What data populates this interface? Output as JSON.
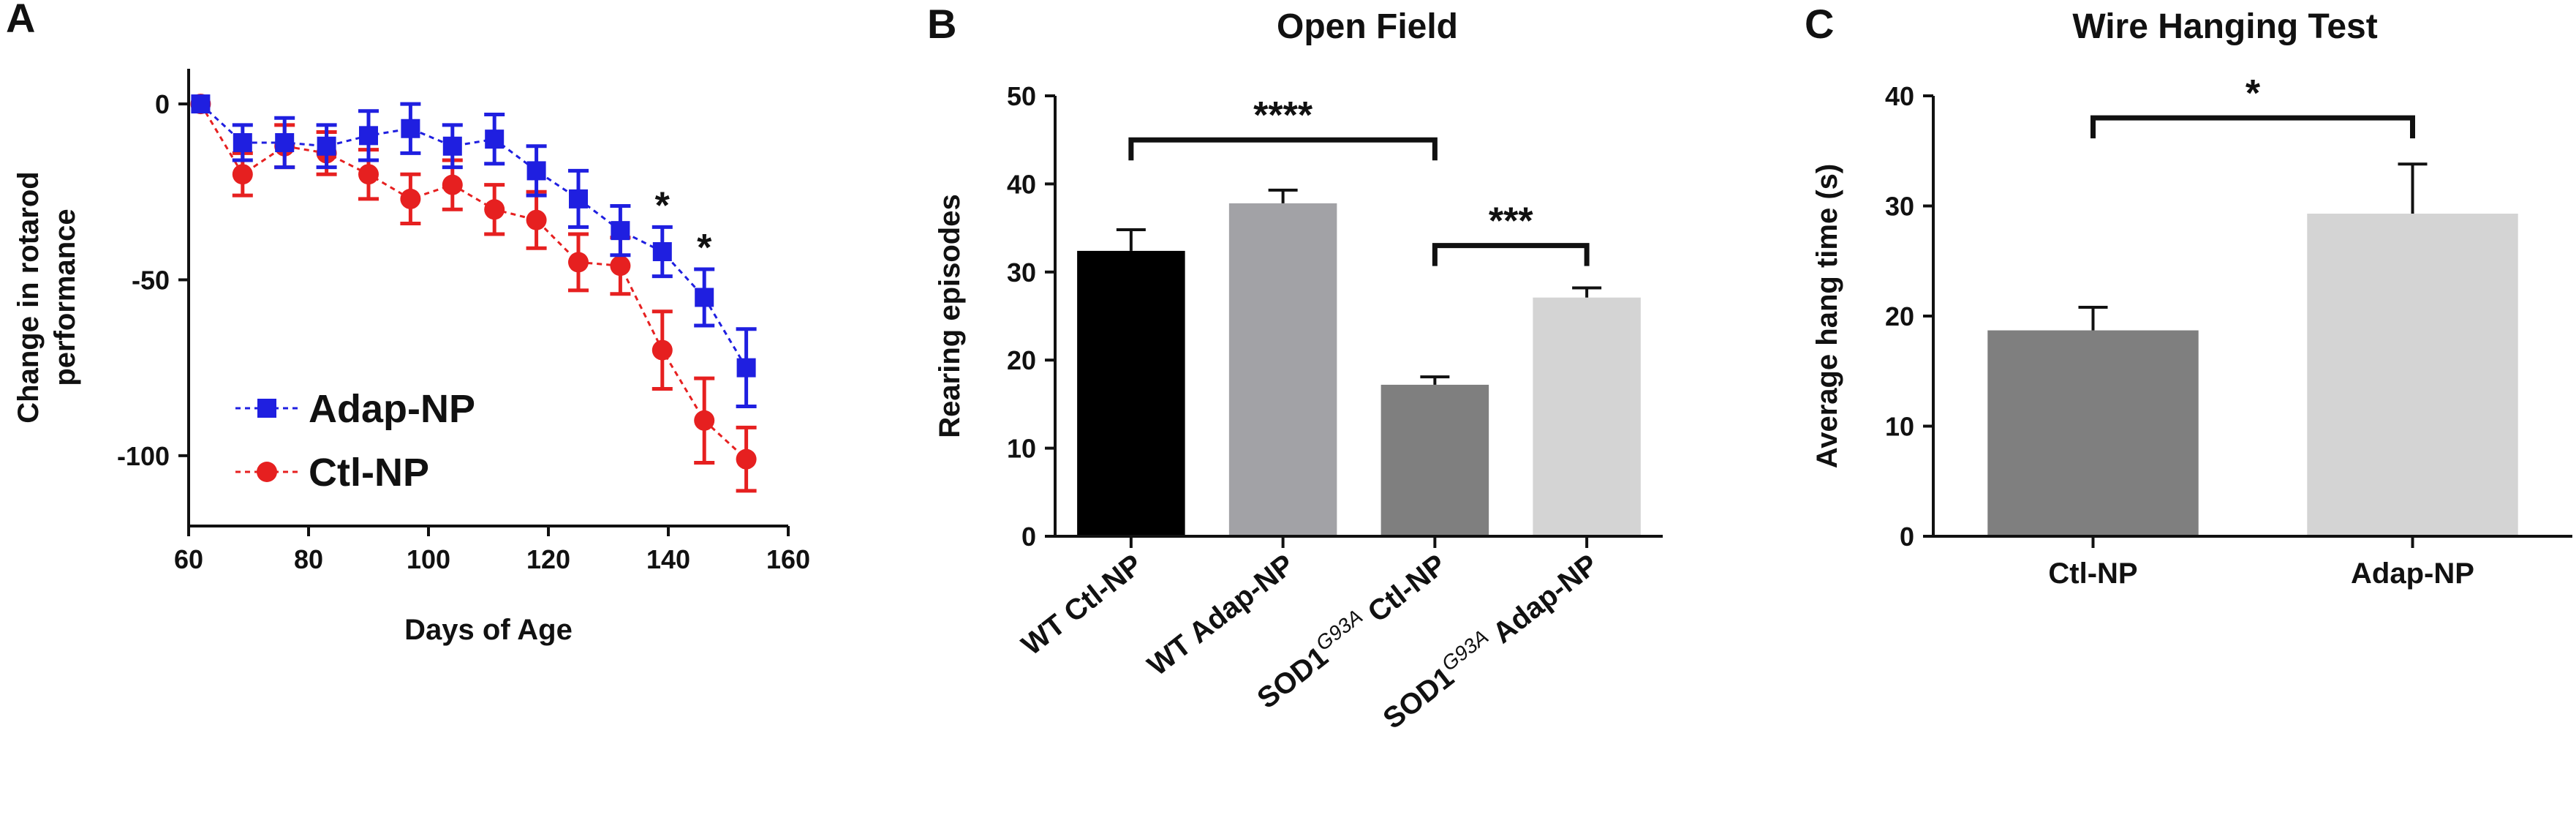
{
  "chart_data": [
    {
      "panel": "A",
      "type": "line",
      "title": "",
      "xlabel": "Days of Age",
      "ylabel_lines": [
        "Change in rotarod",
        "performance"
      ],
      "xlim": [
        60,
        160
      ],
      "ylim": [
        -120,
        10
      ],
      "xticks": [
        60,
        80,
        100,
        120,
        140,
        160
      ],
      "yticks": [
        0,
        -50,
        -100
      ],
      "legend": {
        "position": "bottom-left"
      },
      "series": [
        {
          "name": "Adap-NP",
          "color": "#1f1fe0",
          "marker": "square",
          "x": [
            62,
            69,
            76,
            83,
            90,
            97,
            104,
            111,
            118,
            125,
            132,
            139,
            146,
            153
          ],
          "y": [
            0,
            -11,
            -11,
            -12,
            -9,
            -7,
            -12,
            -10,
            -19,
            -27,
            -36,
            -42,
            -55,
            -75
          ],
          "err": [
            0,
            5,
            7,
            6,
            7,
            7,
            6,
            7,
            7,
            8,
            7,
            7,
            8,
            11
          ]
        },
        {
          "name": "Ctl-NP",
          "color": "#e62020",
          "marker": "circle",
          "x": [
            62,
            69,
            76,
            83,
            90,
            97,
            104,
            111,
            118,
            125,
            132,
            139,
            146,
            153
          ],
          "y": [
            0,
            -20,
            -12,
            -14,
            -20,
            -27,
            -23,
            -30,
            -33,
            -45,
            -46,
            -70,
            -90,
            -101
          ],
          "err": [
            0,
            6,
            6,
            6,
            7,
            7,
            7,
            7,
            8,
            8,
            8,
            11,
            12,
            9
          ]
        }
      ],
      "annotations": [
        {
          "text": "*",
          "x": 139
        },
        {
          "text": "*",
          "x": 146
        }
      ]
    },
    {
      "panel": "B",
      "type": "bar",
      "title": "Open Field",
      "ylabel": "Rearing episodes",
      "ylim": [
        0,
        50
      ],
      "yticks": [
        0,
        10,
        20,
        30,
        40,
        50
      ],
      "categories": [
        {
          "prefix": "WT Ctl-NP",
          "sup": "",
          "suffix": ""
        },
        {
          "prefix": "WT Adap-NP",
          "sup": "",
          "suffix": ""
        },
        {
          "prefix": "SOD1",
          "sup": "G93A",
          "suffix": " Ctl-NP"
        },
        {
          "prefix": "SOD1",
          "sup": "G93A",
          "suffix": " Adap-NP"
        }
      ],
      "values": [
        32.4,
        37.8,
        17.2,
        27.1
      ],
      "errors": [
        2.4,
        1.5,
        0.9,
        1.1
      ],
      "colors": [
        "#000000",
        "#a2a2a6",
        "#7f7f7f",
        "#d4d4d4"
      ],
      "brackets": [
        {
          "from": 0,
          "to": 2,
          "text": "****",
          "level": 45
        },
        {
          "from": 2,
          "to": 3,
          "text": "***",
          "level": 33
        }
      ]
    },
    {
      "panel": "C",
      "type": "bar",
      "title": "Wire Hanging Test",
      "ylabel": "Average hang time (s)",
      "ylim": [
        0,
        40
      ],
      "yticks": [
        0,
        10,
        20,
        30,
        40
      ],
      "categories": [
        {
          "prefix": "Ctl-NP",
          "sup": "",
          "suffix": ""
        },
        {
          "prefix": "Adap-NP",
          "sup": "",
          "suffix": ""
        }
      ],
      "values": [
        18.7,
        29.3
      ],
      "errors": [
        2.1,
        4.5
      ],
      "colors": [
        "#7f7f7f",
        "#d4d4d4"
      ],
      "brackets": [
        {
          "from": 0,
          "to": 1,
          "text": "*",
          "level": 38
        }
      ]
    }
  ]
}
